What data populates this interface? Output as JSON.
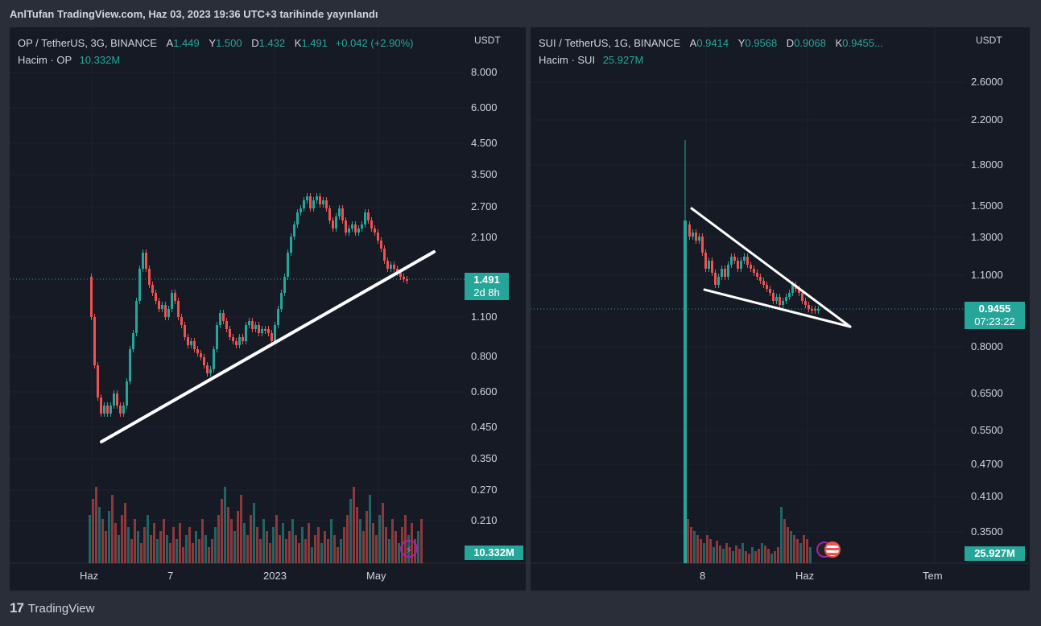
{
  "header": {
    "published": "AnlTufan TradingView.com, Haz 03, 2023 19:36 UTC+3 tarihinde yayınlandı"
  },
  "charts": [
    {
      "id": "op",
      "symbol": "OP / TetherUS, 3G, BINANCE",
      "ohlc": [
        {
          "k": "A",
          "v": "1.449"
        },
        {
          "k": "Y",
          "v": "1.500"
        },
        {
          "k": "D",
          "v": "1.432"
        },
        {
          "k": "K",
          "v": "1.491"
        }
      ],
      "change": "+0.042 (+2.90%)",
      "volume_label": "Hacim · OP",
      "volume_value": "10.332M",
      "currency": "USDT",
      "price_axis": [
        "8.000",
        "6.000",
        "4.500",
        "3.500",
        "2.700",
        "2.100",
        "1.100",
        "0.800",
        "0.600",
        "0.450",
        "0.350",
        "0.270",
        "0.210"
      ],
      "time_axis": [
        "Haz",
        "7",
        "2023",
        "May"
      ],
      "last_price": "1.491",
      "countdown": "2d 8h",
      "volume_tag": "10.332M"
    },
    {
      "id": "sui",
      "symbol": "SUI / TetherUS, 1G, BINANCE",
      "ohlc": [
        {
          "k": "A",
          "v": "0.9414"
        },
        {
          "k": "Y",
          "v": "0.9568"
        },
        {
          "k": "D",
          "v": "0.9068"
        },
        {
          "k": "K",
          "v": "0.9455..."
        }
      ],
      "change": "",
      "volume_label": "Hacim · SUI",
      "volume_value": "25.927M",
      "currency": "USDT",
      "price_axis": [
        "2.6000",
        "2.2000",
        "1.8000",
        "1.5000",
        "1.3000",
        "1.1000",
        "0.8000",
        "0.6500",
        "0.5500",
        "0.4700",
        "0.4100",
        "0.3500"
      ],
      "time_axis": [
        "8",
        "Haz",
        "Tem"
      ],
      "last_price": "0.9455",
      "countdown": "07:23:22",
      "volume_tag": "25.927M"
    }
  ],
  "footer": {
    "logo": "17",
    "brand": "TradingView"
  },
  "colors": {
    "up": "#26a69a",
    "down": "#ef5350",
    "bg": "#161a25",
    "frame": "#2a2e39",
    "trendline": "#ffffff"
  }
}
